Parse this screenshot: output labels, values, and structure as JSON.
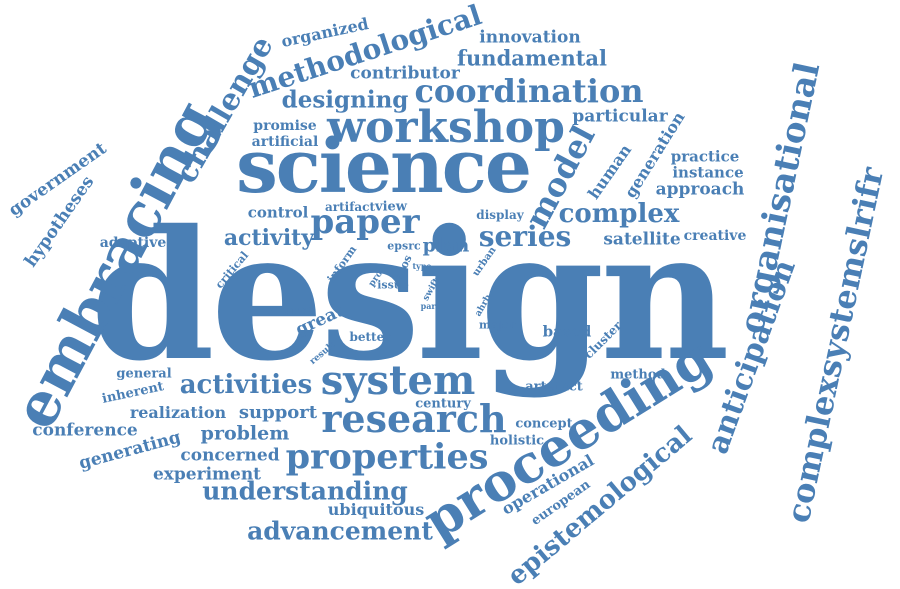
{
  "color": "#4a7fb5",
  "words": {
    "design": "design",
    "science": "science",
    "embracing": "embracing",
    "proceeding": "proceeding",
    "workshop": "workshop",
    "system": "system",
    "research": "research",
    "properties": "properties",
    "coordination": "coordination",
    "organisational": "organisational",
    "complexsystemslrifr": "complexsystemslrifr",
    "challenge": "challenge",
    "methodological": "methodological",
    "model": "model",
    "paper": "paper",
    "complex": "complex",
    "activities": "activities",
    "series": "series",
    "anticipation": "anticipation",
    "epistemological": "epistemological",
    "understanding": "understanding",
    "advancement": "advancement",
    "designing": "designing",
    "fundamental": "fundamental",
    "activity": "activity",
    "organized": "organized",
    "innovation": "innovation",
    "contributor": "contributor",
    "particular": "particular",
    "promise": "promise",
    "artificial": "artificial",
    "human": "human",
    "generation": "generation",
    "practice": "practice",
    "instance": "instance",
    "approach": "approach",
    "government": "government",
    "hypotheses": "hypotheses",
    "control": "control",
    "artifact": "artifact",
    "view": "view",
    "display": "display",
    "satellite": "satellite",
    "creative": "creative",
    "adaptive": "adaptive",
    "plan": "plan",
    "epsrc": "epsrc",
    "critical": "critical",
    "inform": "inform",
    "proc": "proc",
    "ecos": "ecos",
    "type": "type",
    "urban": "urban",
    "issue": "issue",
    "swift": "swift",
    "part": "part",
    "ahrb": "ahrb",
    "source": "source",
    "great": "great",
    "better": "better",
    "result": "result",
    "major": "major",
    "based": "based",
    "cluster": "cluster",
    "general": "general",
    "inherent": "inherent",
    "method": "method",
    "artefact": "artefact",
    "realization": "realization",
    "support": "support",
    "century": "century",
    "conference": "conference",
    "problem": "problem",
    "concept": "concept",
    "generating": "generating",
    "holistic": "holistic",
    "concerned": "concerned",
    "experiment": "experiment",
    "operational": "operational",
    "european": "european",
    "ubiquitous": "ubiquitous"
  }
}
